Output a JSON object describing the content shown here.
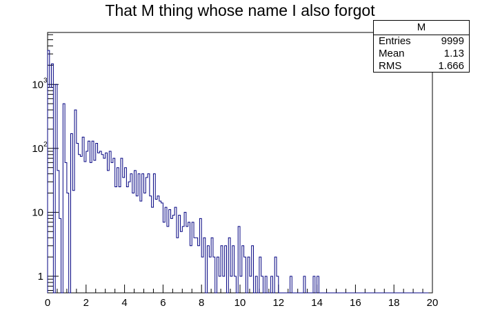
{
  "chart_data": {
    "type": "histogram",
    "title": "That M thing whose name I also forgot",
    "xlabel": "",
    "ylabel": "",
    "x_range": [
      0,
      20
    ],
    "y_scale": "log",
    "y_range": [
      0.55,
      6500
    ],
    "bin_width": 0.1,
    "x_ticks": [
      "0",
      "2",
      "4",
      "6",
      "8",
      "10",
      "12",
      "14",
      "16",
      "18",
      "20"
    ],
    "y_ticks": [
      "1",
      "10",
      "10",
      "10"
    ],
    "y_tick_values": [
      1,
      10,
      100,
      1000
    ],
    "grid": false,
    "line_color": "#000080",
    "stats_box": {
      "name": "M",
      "entries_label": "Entries",
      "entries": "9999",
      "mean_label": "Mean",
      "mean": "1.13",
      "rms_label": "RMS",
      "rms": "1.666"
    },
    "bin_counts": [
      3400,
      900,
      2100,
      0,
      1000,
      45,
      8,
      0,
      500,
      60,
      20,
      0,
      170,
      22,
      400,
      120,
      80,
      75,
      150,
      62,
      90,
      130,
      60,
      130,
      65,
      120,
      85,
      90,
      80,
      70,
      85,
      45,
      90,
      60,
      70,
      25,
      50,
      25,
      70,
      35,
      50,
      25,
      30,
      40,
      20,
      45,
      18,
      40,
      15,
      40,
      20,
      35,
      40,
      18,
      12,
      40,
      16,
      18,
      15,
      14,
      7,
      12,
      6,
      11,
      8,
      9,
      12,
      4,
      9,
      5,
      6,
      10,
      6,
      7,
      3,
      7,
      4,
      4,
      3,
      8,
      2,
      4,
      0.01,
      3,
      2,
      4,
      2,
      0.01,
      2,
      1,
      3,
      1,
      3,
      0.01,
      4,
      1,
      3,
      1,
      0.01,
      6,
      1,
      3,
      2,
      0.01,
      2,
      1,
      3,
      0.01,
      1,
      0.01,
      2,
      1,
      0.01,
      1,
      0.01,
      0.01,
      1,
      0.01,
      2,
      1,
      0.01,
      0.01,
      0.01,
      0.01,
      0.01,
      0.01,
      1,
      0.01,
      0.01,
      0.01,
      0.01,
      0.01,
      0.01,
      1,
      0.01,
      0.01,
      0.01,
      0.01,
      1,
      0.01,
      1,
      0.01,
      0.01,
      0.01,
      0.01,
      0.01,
      0.01,
      0.01,
      0.01,
      0.01,
      0.01,
      0.01,
      0.01,
      0.01,
      0.01,
      0.01,
      0.01,
      0.01,
      0.01,
      0.01,
      0.01,
      0.01,
      0.01,
      0.01,
      0.01,
      0.01,
      0.01,
      0.01,
      0.01,
      0.01,
      0.01,
      0.01,
      0.01,
      0.01,
      0.01,
      0.01,
      0.01,
      0.01,
      0.01,
      0.01,
      0.01,
      0.01,
      0.01,
      0.01,
      0.01,
      0.01,
      0.01,
      0.01,
      0.01,
      0.01,
      0.01,
      0.01,
      0.01,
      0.01,
      0.01,
      0.01,
      0.01,
      0.01
    ]
  }
}
